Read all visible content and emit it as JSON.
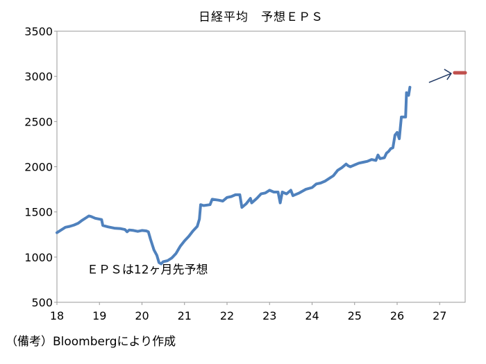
{
  "chart_data": {
    "type": "line",
    "title": "日経平均　予想ＥＰＳ",
    "xlabel": "",
    "ylabel": "",
    "xlim": [
      18,
      27.6
    ],
    "ylim": [
      500,
      3500
    ],
    "y_ticks": [
      500,
      1000,
      1500,
      2000,
      2500,
      3000,
      3500
    ],
    "x_ticks": [
      18,
      19,
      20,
      21,
      22,
      23,
      24,
      25,
      26,
      27
    ],
    "grid": false,
    "legend": "none",
    "line_color": "#4f81bd",
    "marker_color": "#c0504d",
    "series": [
      {
        "values": [
          [
            18.0,
            1270
          ],
          [
            18.1,
            1300
          ],
          [
            18.2,
            1330
          ],
          [
            18.3,
            1340
          ],
          [
            18.4,
            1355
          ],
          [
            18.5,
            1375
          ],
          [
            18.6,
            1410
          ],
          [
            18.7,
            1440
          ],
          [
            18.75,
            1455
          ],
          [
            18.8,
            1450
          ],
          [
            18.9,
            1430
          ],
          [
            19.05,
            1415
          ],
          [
            19.08,
            1350
          ],
          [
            19.2,
            1335
          ],
          [
            19.35,
            1320
          ],
          [
            19.5,
            1315
          ],
          [
            19.6,
            1305
          ],
          [
            19.65,
            1280
          ],
          [
            19.7,
            1300
          ],
          [
            19.8,
            1295
          ],
          [
            19.9,
            1285
          ],
          [
            20.0,
            1295
          ],
          [
            20.1,
            1290
          ],
          [
            20.15,
            1280
          ],
          [
            20.2,
            1200
          ],
          [
            20.28,
            1080
          ],
          [
            20.35,
            1020
          ],
          [
            20.4,
            940
          ],
          [
            20.45,
            925
          ],
          [
            20.5,
            950
          ],
          [
            20.6,
            960
          ],
          [
            20.7,
            990
          ],
          [
            20.8,
            1040
          ],
          [
            20.9,
            1120
          ],
          [
            21.0,
            1180
          ],
          [
            21.1,
            1230
          ],
          [
            21.2,
            1290
          ],
          [
            21.3,
            1340
          ],
          [
            21.35,
            1420
          ],
          [
            21.38,
            1580
          ],
          [
            21.45,
            1570
          ],
          [
            21.6,
            1580
          ],
          [
            21.65,
            1640
          ],
          [
            21.8,
            1630
          ],
          [
            21.9,
            1620
          ],
          [
            22.0,
            1660
          ],
          [
            22.1,
            1670
          ],
          [
            22.2,
            1690
          ],
          [
            22.3,
            1690
          ],
          [
            22.35,
            1550
          ],
          [
            22.45,
            1590
          ],
          [
            22.55,
            1650
          ],
          [
            22.58,
            1600
          ],
          [
            22.7,
            1650
          ],
          [
            22.8,
            1700
          ],
          [
            22.9,
            1710
          ],
          [
            23.0,
            1740
          ],
          [
            23.1,
            1720
          ],
          [
            23.2,
            1720
          ],
          [
            23.25,
            1600
          ],
          [
            23.3,
            1720
          ],
          [
            23.4,
            1700
          ],
          [
            23.5,
            1740
          ],
          [
            23.55,
            1680
          ],
          [
            23.7,
            1710
          ],
          [
            23.85,
            1750
          ],
          [
            24.0,
            1770
          ],
          [
            24.1,
            1810
          ],
          [
            24.2,
            1820
          ],
          [
            24.3,
            1840
          ],
          [
            24.4,
            1870
          ],
          [
            24.5,
            1900
          ],
          [
            24.6,
            1960
          ],
          [
            24.7,
            1990
          ],
          [
            24.8,
            2030
          ],
          [
            24.85,
            2010
          ],
          [
            24.9,
            2000
          ],
          [
            25.0,
            2020
          ],
          [
            25.1,
            2040
          ],
          [
            25.2,
            2050
          ],
          [
            25.3,
            2060
          ],
          [
            25.4,
            2080
          ],
          [
            25.5,
            2070
          ],
          [
            25.55,
            2130
          ],
          [
            25.6,
            2090
          ],
          [
            25.7,
            2100
          ],
          [
            25.75,
            2150
          ],
          [
            25.8,
            2170
          ],
          [
            25.85,
            2200
          ],
          [
            25.9,
            2210
          ],
          [
            25.95,
            2350
          ],
          [
            26.0,
            2380
          ],
          [
            26.05,
            2310
          ],
          [
            26.1,
            2550
          ],
          [
            26.2,
            2550
          ],
          [
            26.22,
            2820
          ],
          [
            26.27,
            2790
          ],
          [
            26.3,
            2880
          ]
        ]
      }
    ],
    "forecast_marker": {
      "x": 27.5,
      "y": 3040
    },
    "annotation": "ＥＰＳは12ヶ月先予想",
    "footnote": "（備考）Bloombergにより作成"
  }
}
